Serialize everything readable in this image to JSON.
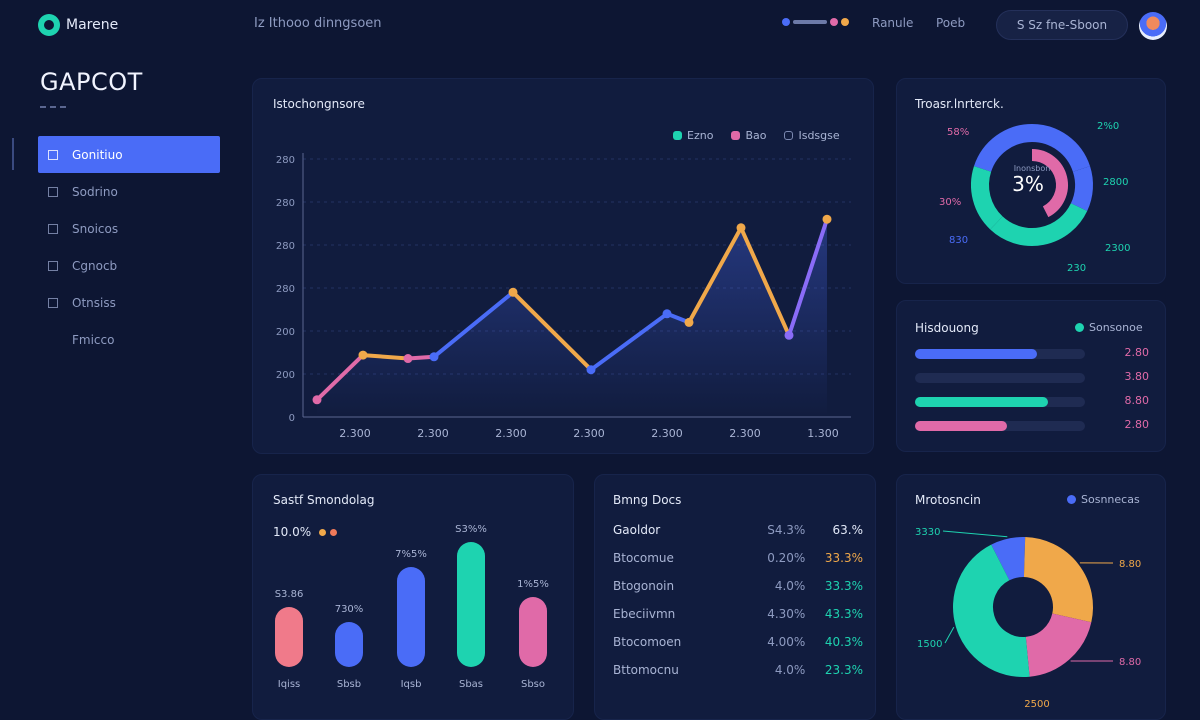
{
  "header": {
    "brand": "Marene",
    "subtitle": "Iz Ithooo dinngsoen",
    "status": "Ranule",
    "link": "Poeb",
    "search_placeholder": "S Sz fne-Sboon",
    "dot_colors": [
      "#4a6cf7",
      "#e06aa8",
      "#f0a84a"
    ]
  },
  "sidebar": {
    "title": "GAPCOT",
    "items": [
      {
        "label": "Gonitiuo",
        "active": true
      },
      {
        "label": "Sodrino",
        "active": false
      },
      {
        "label": "Snoicos",
        "active": false
      },
      {
        "label": "Cgnocb",
        "active": false
      },
      {
        "label": "Otnsiss",
        "active": false
      },
      {
        "label": "Fmicco",
        "active": false
      }
    ]
  },
  "line_panel": {
    "title": "Istochongnsore",
    "legend": [
      {
        "name": "Ezno",
        "color": "#1ed3b0"
      },
      {
        "name": "Bao",
        "color": "#e06aa8"
      },
      {
        "name": "Isdsgse",
        "color": "#7b88b0"
      }
    ]
  },
  "chart_data": [
    {
      "type": "line",
      "x": [
        "2.300",
        "2.300",
        "2.300",
        "2.300",
        "2.300",
        "2.300",
        "1.300"
      ],
      "y_ticks": [
        "0",
        "200",
        "200",
        "280",
        "280",
        "280",
        "280"
      ],
      "ylim": [
        0,
        300
      ],
      "grid": true,
      "points": [
        20,
        72,
        68,
        70,
        145,
        55,
        120,
        110,
        220,
        95,
        230
      ],
      "point_colors": [
        "#e06aa8",
        "#f0a84a",
        "#e06aa8",
        "#4a6cf7",
        "#f0a84a",
        "#4a6cf7",
        "#4a6cf7",
        "#f0a84a",
        "#f0a84a",
        "#8a6cf7",
        "#f0a84a"
      ]
    },
    {
      "type": "pie",
      "title": "Troasr.lnrterck.",
      "center_label": "3%",
      "center_caption": "Inonsbon",
      "slices": [
        {
          "label": "830",
          "value": 40,
          "color": "#4a6cf7"
        },
        {
          "label": "2800",
          "value": 12,
          "color": "#4a6cf7"
        },
        {
          "label": "2300",
          "value": 30,
          "color": "#1ed3b0"
        },
        {
          "label": "230",
          "value": 18,
          "color": "#1ed3b0"
        }
      ],
      "outer_labels": [
        "58%",
        "2%0",
        "30%",
        "830",
        "2800",
        "2300",
        "230"
      ]
    },
    {
      "type": "bar",
      "title": "Sastf Smondolag",
      "categories": [
        "Iqiss",
        "Sbsb",
        "Iqsb",
        "Sbas",
        "Sbso"
      ],
      "values": [
        60,
        45,
        100,
        125,
        70
      ],
      "value_labels": [
        "S3.86",
        "730%",
        "7%5%",
        "S3%%",
        "1%5%"
      ],
      "colors": [
        "#f07a8a",
        "#4a6cf7",
        "#4a6cf7",
        "#1ed3b0",
        "#e06aa8"
      ],
      "headline": "10.0%"
    },
    {
      "type": "pie",
      "title": "Mrotosncin",
      "legend": "Sosnnecas",
      "slices": [
        {
          "label": "3330",
          "value": 8,
          "color": "#4a6cf7"
        },
        {
          "label": "8.80",
          "value": 28,
          "color": "#f0a84a"
        },
        {
          "label": "8.80",
          "value": 20,
          "color": "#e06aa8"
        },
        {
          "label": "1500",
          "value": 44,
          "color": "#1ed3b0"
        }
      ],
      "bottom_label": "2500"
    }
  ],
  "progress_panel": {
    "title": "Hisdouong",
    "legend": "Sonsonoe",
    "bars": [
      {
        "fraction": 0.72,
        "color": "#4a6cf7",
        "value": "2.80",
        "value_color": "#e06aa8"
      },
      {
        "fraction": 0.0,
        "color": "#1f2b52",
        "value": "3.80",
        "value_color": "#e06aa8"
      },
      {
        "fraction": 0.78,
        "color": "#1ed3b0",
        "value": "8.80",
        "value_color": "#e06aa8"
      },
      {
        "fraction": 0.54,
        "color": "#e06aa8",
        "value": "2.80",
        "value_color": "#e06aa8"
      }
    ]
  },
  "table_panel": {
    "title": "Bmng Docs",
    "header": {
      "c1": "Gaoldor",
      "c2": "S4.3%",
      "c3": "63.%"
    },
    "rows": [
      {
        "c1": "Btocomue",
        "c2": "0.20%",
        "c3": "33.3%",
        "c3_color": "#f0a84a"
      },
      {
        "c1": "Btogonoin",
        "c2": "4.0%",
        "c3": "33.3%",
        "c3_color": "#1ed3b0"
      },
      {
        "c1": "Ebeciivmn",
        "c2": "4.30%",
        "c3": "43.3%",
        "c3_color": "#1ed3b0"
      },
      {
        "c1": "Btocomoen",
        "c2": "4.00%",
        "c3": "40.3%",
        "c3_color": "#1ed3b0"
      },
      {
        "c1": "Bttomocnu",
        "c2": "4.0%",
        "c3": "23.3%",
        "c3_color": "#1ed3b0"
      }
    ]
  }
}
